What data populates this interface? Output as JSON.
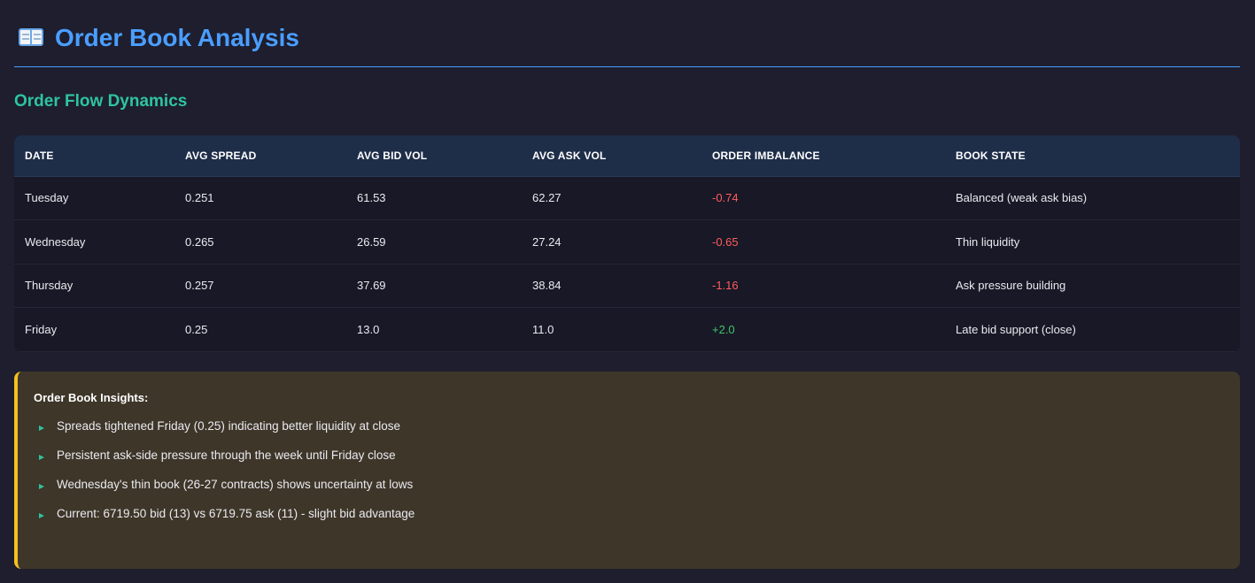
{
  "header": {
    "icon": "open-book-icon",
    "title": "Order Book Analysis"
  },
  "section": {
    "title": "Order Flow Dynamics"
  },
  "table": {
    "columns": [
      "DATE",
      "AVG SPREAD",
      "AVG BID VOL",
      "AVG ASK VOL",
      "ORDER IMBALANCE",
      "BOOK STATE"
    ],
    "rows": [
      {
        "date": "Tuesday",
        "spread": "0.251",
        "bid": "61.53",
        "ask": "62.27",
        "imbalance": "-0.74",
        "state": "Balanced (weak ask bias)"
      },
      {
        "date": "Wednesday",
        "spread": "0.265",
        "bid": "26.59",
        "ask": "27.24",
        "imbalance": "-0.65",
        "state": "Thin liquidity"
      },
      {
        "date": "Thursday",
        "spread": "0.257",
        "bid": "37.69",
        "ask": "38.84",
        "imbalance": "-1.16",
        "state": "Ask pressure building"
      },
      {
        "date": "Friday",
        "spread": "0.25",
        "bid": "13.0",
        "ask": "11.0",
        "imbalance": "+2.0",
        "state": "Late bid support (close)"
      }
    ]
  },
  "insights": {
    "title": "Order Book Insights:",
    "items": [
      "Spreads tightened Friday (0.25) indicating better liquidity at close",
      "Persistent ask-side pressure through the week until Friday close",
      "Wednesday's thin book (26-27 contracts) shows uncertainty at lows",
      "Current: 6719.50 bid (13) vs 6719.75 ask (11) - slight bid advantage"
    ]
  },
  "colors": {
    "accent": "#4a9eff",
    "section": "#2ec4a0",
    "negative": "#ff5c5c",
    "positive": "#3fc46b",
    "highlight": "#f5c020"
  }
}
